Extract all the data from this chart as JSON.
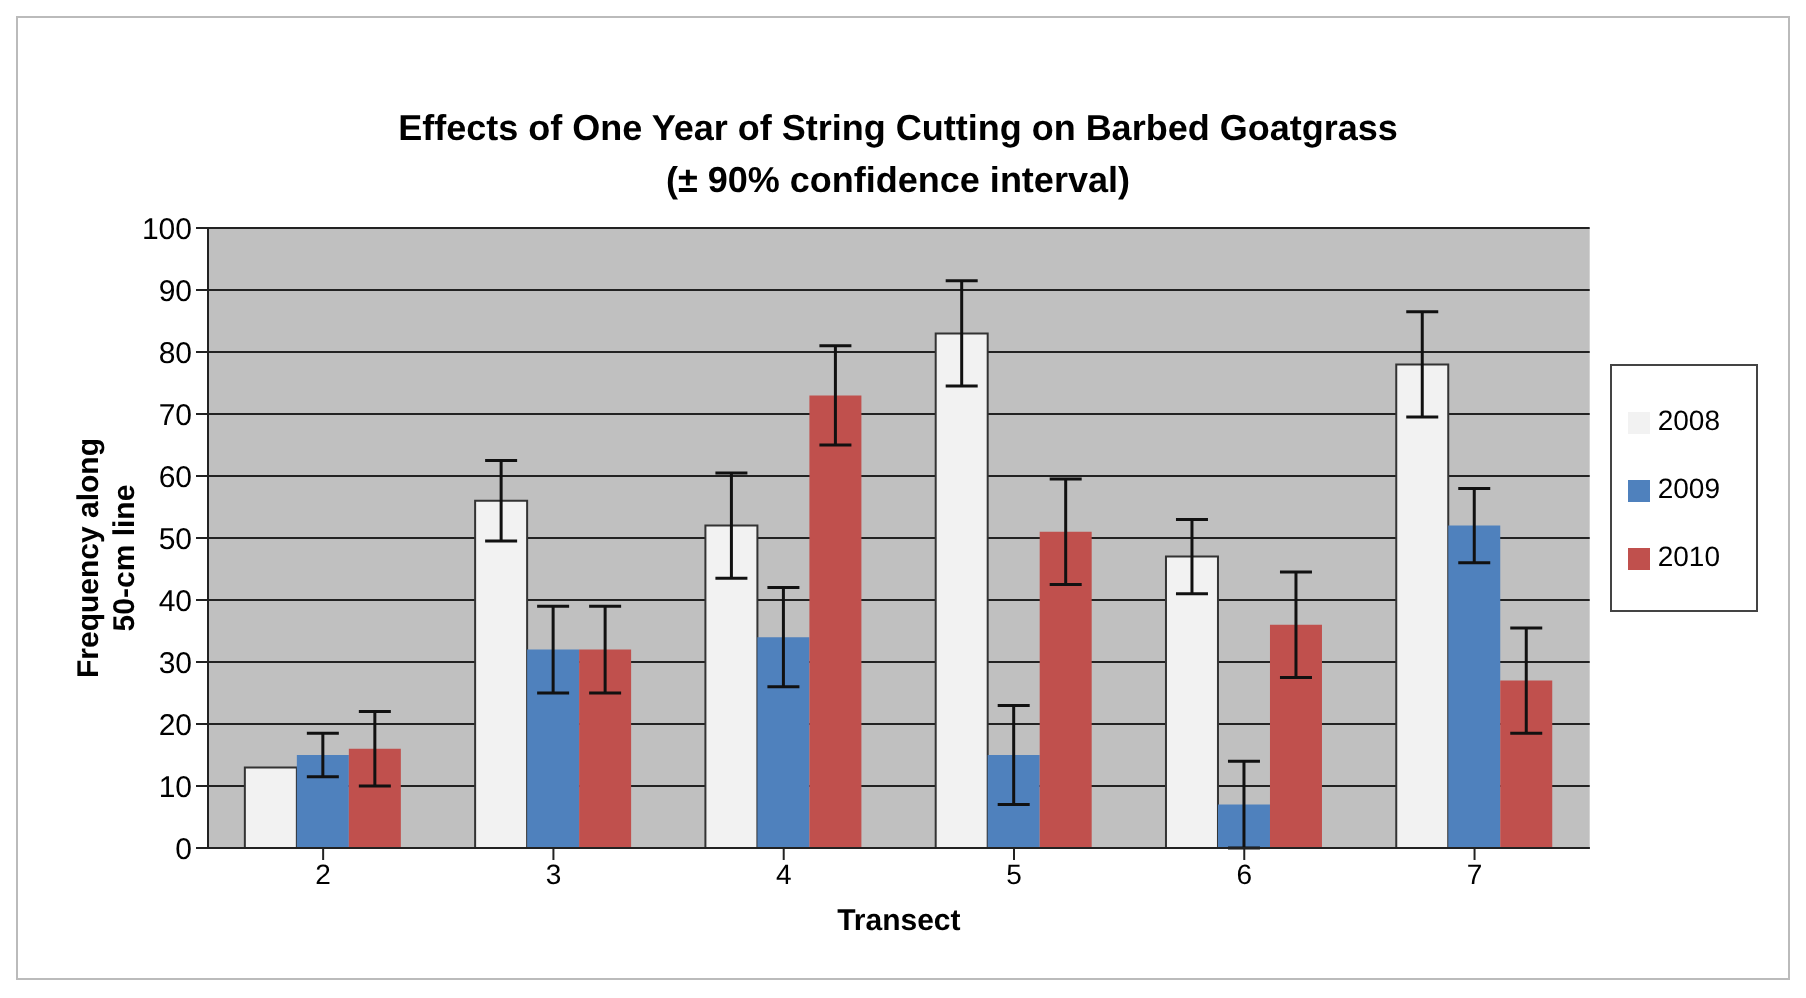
{
  "chart_data": {
    "type": "bar",
    "title": "Effects of One Year of String Cutting on Barbed Goatgrass",
    "subtitle": "(± 90% confidence interval)",
    "xlabel": "Transect",
    "ylabel": "Frequency along 50-cm line",
    "categories": [
      "2",
      "3",
      "4",
      "5",
      "6",
      "7"
    ],
    "series": [
      {
        "name": "2008",
        "color": "#f2f2f2",
        "values": [
          13,
          56,
          52,
          83,
          47,
          78
        ],
        "errors": [
          null,
          6.5,
          8.5,
          8.5,
          6,
          8.5
        ]
      },
      {
        "name": "2009",
        "color": "#4f81bd",
        "values": [
          15,
          32,
          34,
          15,
          7,
          52
        ],
        "errors": [
          3.5,
          7,
          8,
          8,
          7,
          6
        ]
      },
      {
        "name": "2010",
        "color": "#c0504d",
        "values": [
          16,
          32,
          73,
          51,
          36,
          27
        ],
        "errors": [
          6,
          7,
          8,
          8.5,
          8.5,
          8.5
        ]
      }
    ],
    "ylim": [
      0,
      100
    ],
    "yticks": [
      0,
      10,
      20,
      30,
      40,
      50,
      60,
      70,
      80,
      90,
      100
    ],
    "grid": "y",
    "legend": "right"
  }
}
